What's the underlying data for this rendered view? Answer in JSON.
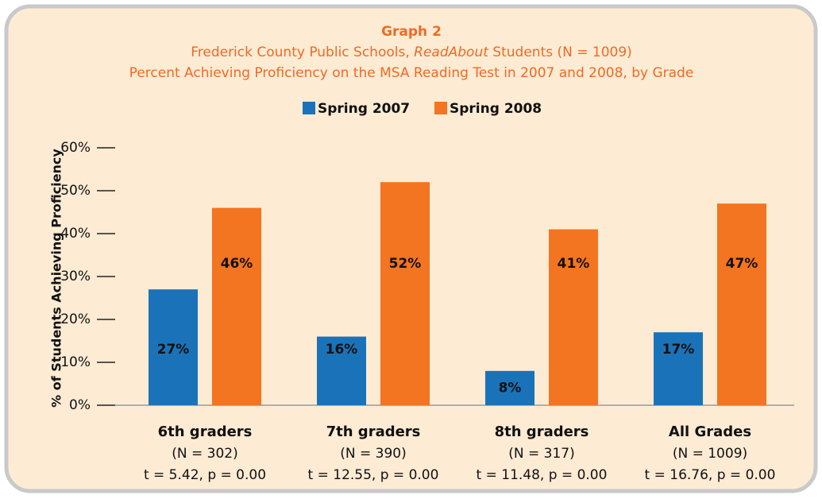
{
  "chart_data": {
    "type": "bar",
    "title": "Graph 2",
    "subtitle": [
      "Frederick County Public Schools, ",
      "ReadAbout",
      " Students (N = 1009)"
    ],
    "subtitle2": "Percent Achieving Proficiency on the MSA Reading Test in 2007 and 2008, by Grade",
    "y_label": "% of Students Achieving Proficiency",
    "categories": [
      "6th graders",
      "7th graders",
      "8th graders",
      "All Grades"
    ],
    "category_notes": [
      [
        "(N = 302)",
        "t = 5.42, p = 0.00"
      ],
      [
        "(N = 390)",
        "t = 12.55, p = 0.00"
      ],
      [
        "(N = 317)",
        "t = 11.48, p = 0.00"
      ],
      [
        "(N = 1009)",
        "t = 16.76, p = 0.00"
      ]
    ],
    "series": [
      {
        "name": "Spring 2007",
        "color": "#1a73b9",
        "values": [
          27,
          16,
          8,
          17
        ],
        "value_labels": [
          "27%",
          "16%",
          "8%",
          "17%"
        ]
      },
      {
        "name": "Spring 2008",
        "color": "#f37421",
        "values": [
          46,
          52,
          41,
          47
        ],
        "value_labels": [
          "46%",
          "52%",
          "41%",
          "47%"
        ]
      }
    ],
    "ylim": [
      0,
      60
    ],
    "yticks": [
      {
        "value": 0,
        "label": "0%"
      },
      {
        "value": 10,
        "label": "10%"
      },
      {
        "value": 20,
        "label": "20%"
      },
      {
        "value": 30,
        "label": "30%"
      },
      {
        "value": 40,
        "label": "40%"
      },
      {
        "value": 50,
        "label": "50%"
      },
      {
        "value": 60,
        "label": "60%"
      }
    ],
    "legend": "top"
  }
}
